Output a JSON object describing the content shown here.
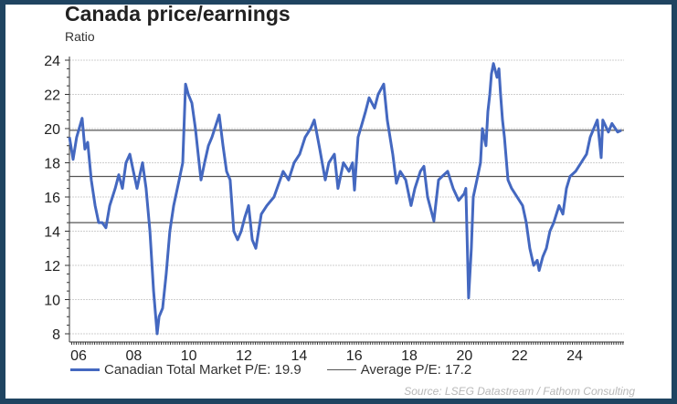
{
  "chart_data": {
    "type": "line",
    "title": "Canada price/earnings",
    "ylabel": "Ratio",
    "xlabel": "",
    "ylim": [
      8,
      24
    ],
    "xlim": [
      2005.67,
      2025.77
    ],
    "yticks": [
      "24",
      "22",
      "20",
      "18",
      "16",
      "14",
      "12",
      "10",
      "8"
    ],
    "ytick_values": [
      24,
      22,
      20,
      18,
      16,
      14,
      12,
      10,
      8
    ],
    "xticks": [
      "06",
      "08",
      "10",
      "12",
      "14",
      "16",
      "18",
      "20",
      "22",
      "24"
    ],
    "xtick_values": [
      2006,
      2008,
      2010,
      2012,
      2014,
      2016,
      2018,
      2020,
      2022,
      2024
    ],
    "grid": true,
    "legend_position": "bottom",
    "series": [
      {
        "name": "Canadian Total Market P/E: 19.9",
        "color": "#4468c0",
        "x": [
          2005.67,
          2005.8,
          2005.93,
          2006.13,
          2006.23,
          2006.33,
          2006.46,
          2006.6,
          2006.73,
          2006.86,
          2006.99,
          2007.13,
          2007.33,
          2007.46,
          2007.59,
          2007.72,
          2007.86,
          2007.99,
          2008.12,
          2008.25,
          2008.32,
          2008.45,
          2008.59,
          2008.72,
          2008.85,
          2008.92,
          2009.05,
          2009.18,
          2009.31,
          2009.45,
          2009.65,
          2009.78,
          2009.88,
          2009.98,
          2010.11,
          2010.24,
          2010.34,
          2010.44,
          2010.57,
          2010.71,
          2010.84,
          2011.1,
          2011.24,
          2011.37,
          2011.5,
          2011.63,
          2011.77,
          2011.9,
          2012.03,
          2012.17,
          2012.3,
          2012.43,
          2012.63,
          2012.83,
          2013.09,
          2013.42,
          2013.62,
          2013.82,
          2014.02,
          2014.22,
          2014.42,
          2014.55,
          2014.75,
          2014.95,
          2015.08,
          2015.28,
          2015.41,
          2015.61,
          2015.81,
          2015.94,
          2016.01,
          2016.14,
          2016.27,
          2016.41,
          2016.54,
          2016.74,
          2016.87,
          2017.07,
          2017.2,
          2017.4,
          2017.53,
          2017.67,
          2017.87,
          2018.06,
          2018.2,
          2018.4,
          2018.53,
          2018.66,
          2018.89,
          2019.06,
          2019.19,
          2019.39,
          2019.59,
          2019.79,
          2019.99,
          2020.05,
          2020.15,
          2020.25,
          2020.32,
          2020.45,
          2020.58,
          2020.65,
          2020.78,
          2020.85,
          2020.92,
          2020.98,
          2021.05,
          2021.18,
          2021.25,
          2021.31,
          2021.38,
          2021.45,
          2021.58,
          2021.71,
          2021.91,
          2022.11,
          2022.24,
          2022.37,
          2022.51,
          2022.64,
          2022.71,
          2022.84,
          2022.97,
          2023.1,
          2023.24,
          2023.43,
          2023.57,
          2023.7,
          2023.83,
          2024.03,
          2024.23,
          2024.43,
          2024.56,
          2024.69,
          2024.82,
          2024.96,
          2025.02,
          2025.22,
          2025.35,
          2025.56,
          2025.69
        ],
        "y": [
          19.5,
          18.2,
          19.5,
          20.6,
          18.8,
          19.2,
          17.0,
          15.5,
          14.5,
          14.5,
          14.2,
          15.5,
          16.5,
          17.3,
          16.5,
          18.0,
          18.5,
          17.5,
          16.5,
          17.5,
          18.0,
          16.5,
          14.0,
          10.5,
          8.0,
          9.0,
          9.5,
          11.5,
          14.0,
          15.5,
          17.0,
          18.0,
          22.6,
          22.0,
          21.5,
          20.0,
          18.5,
          17.0,
          18.0,
          19.0,
          19.5,
          20.8,
          19.0,
          17.5,
          17.0,
          14.0,
          13.5,
          14.0,
          14.8,
          15.5,
          13.5,
          13.0,
          15.0,
          15.5,
          16.0,
          17.5,
          17.0,
          18.0,
          18.5,
          19.5,
          20.0,
          20.5,
          18.8,
          17.0,
          18.0,
          18.5,
          16.5,
          18.0,
          17.5,
          18.0,
          16.4,
          19.5,
          20.2,
          21.0,
          21.8,
          21.2,
          22.0,
          22.6,
          20.5,
          18.5,
          16.8,
          17.5,
          17.0,
          15.5,
          16.5,
          17.5,
          17.8,
          16.0,
          14.6,
          17.0,
          17.2,
          17.5,
          16.5,
          15.8,
          16.2,
          16.5,
          10.1,
          13.0,
          16.0,
          17.0,
          18.0,
          20.0,
          19.0,
          21.0,
          22.0,
          23.2,
          23.8,
          23.0,
          23.5,
          22.0,
          20.5,
          19.5,
          17.0,
          16.5,
          16.0,
          15.5,
          14.5,
          13.0,
          12.0,
          12.3,
          11.7,
          12.5,
          13.0,
          14.0,
          14.5,
          15.5,
          15.0,
          16.5,
          17.2,
          17.5,
          18.0,
          18.5,
          19.5,
          20.0,
          20.5,
          18.3,
          20.5,
          19.8,
          20.3,
          19.8,
          19.9
        ]
      }
    ],
    "reference_lines": [
      {
        "name": "Average P/E: 17.2",
        "value": 17.2,
        "color": "#555555"
      },
      {
        "value": 19.9,
        "color": "#555555"
      },
      {
        "value": 14.5,
        "color": "#555555"
      }
    ],
    "source": "Source: LSEG Datastream / Fathom Consulting"
  }
}
